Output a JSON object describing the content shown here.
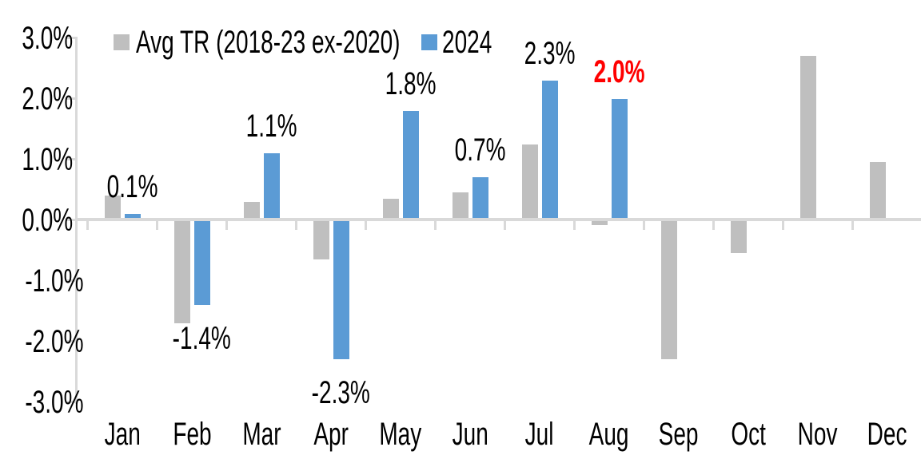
{
  "chart_data": {
    "type": "bar",
    "title": "",
    "categories": [
      "Jan",
      "Feb",
      "Mar",
      "Apr",
      "May",
      "Jun",
      "Jul",
      "Aug",
      "Sep",
      "Oct",
      "Nov",
      "Dec"
    ],
    "series": [
      {
        "name": "Avg TR (2018-23 ex-2020)",
        "color": "#bfbfbf",
        "values": [
          0.4,
          -1.7,
          0.3,
          -0.65,
          0.35,
          0.45,
          1.25,
          -0.08,
          -2.3,
          -0.55,
          2.7,
          0.95
        ]
      },
      {
        "name": "2024",
        "color": "#5b9bd5",
        "values": [
          0.1,
          -1.4,
          1.1,
          -2.3,
          1.8,
          0.7,
          2.3,
          2.0,
          null,
          null,
          null,
          null
        ],
        "data_labels": [
          {
            "text": "0.1%",
            "color": "#000000",
            "bold": false
          },
          {
            "text": "-1.4%",
            "color": "#000000",
            "bold": false
          },
          {
            "text": "1.1%",
            "color": "#000000",
            "bold": false
          },
          {
            "text": "-2.3%",
            "color": "#000000",
            "bold": false
          },
          {
            "text": "1.8%",
            "color": "#000000",
            "bold": false
          },
          {
            "text": "0.7%",
            "color": "#000000",
            "bold": false
          },
          {
            "text": "2.3%",
            "color": "#000000",
            "bold": false
          },
          {
            "text": "2.0%",
            "color": "#ff0000",
            "bold": true
          },
          null,
          null,
          null,
          null
        ]
      }
    ],
    "ylim": [
      -3,
      3
    ],
    "y_tick_labels": [
      "3.0%",
      "2.0%",
      "1.0%",
      "0.0%",
      "-1.0%",
      "-2.0%",
      "-3.0%"
    ],
    "grid": false,
    "legend_position": "top",
    "axis_color": "#d9d9d9",
    "background": "#ffffff"
  }
}
